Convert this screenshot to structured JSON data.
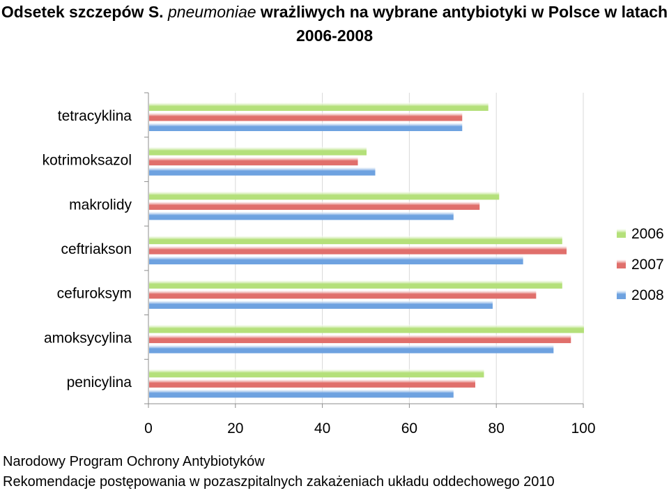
{
  "title": {
    "part1": "Odsetek szczepów S. ",
    "part2_italic": "pneumoniae",
    "part3": " wrażliwych na wybrane antybiotyki w Polsce w latach 2006-2008"
  },
  "source": {
    "line1": "Narodowy Program Ochrony Antybiotyków",
    "line2": "Rekomendacje postępowania w pozaszpitalnych zakażeniach układu oddechowego 2010"
  },
  "chart_data": {
    "type": "bar",
    "orientation": "horizontal",
    "categories": [
      "tetracyklina",
      "kotrimoksazol",
      "makrolidy",
      "ceftriakson",
      "cefuroksym",
      "amoksycylina",
      "penicylina"
    ],
    "series": [
      {
        "name": "2006",
        "color": "#b4e07a",
        "values": [
          78,
          50,
          80.5,
          95,
          95,
          100,
          77
        ]
      },
      {
        "name": "2007",
        "color": "#e06f6b",
        "values": [
          72,
          48,
          76,
          96,
          89,
          97,
          75
        ]
      },
      {
        "name": "2008",
        "color": "#6ea2e0",
        "values": [
          72,
          52,
          70,
          86,
          79,
          93,
          70
        ]
      }
    ],
    "xlim": [
      0,
      100
    ],
    "xticks": [
      0,
      20,
      40,
      60,
      80,
      100
    ],
    "grid": true,
    "legend_position": "right"
  }
}
